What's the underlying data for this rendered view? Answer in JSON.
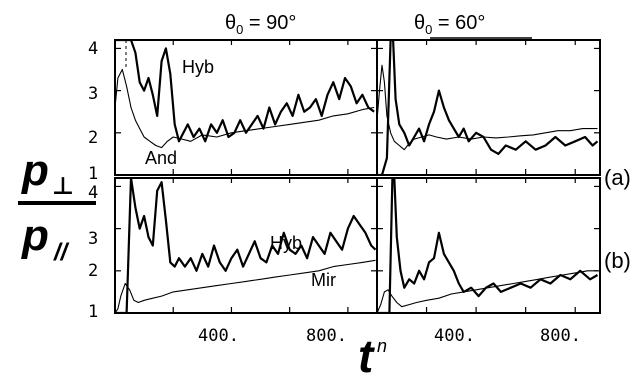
{
  "figure": {
    "y_label_numerator": "p",
    "y_label_numerator_sub": "⊥",
    "y_label_denominator": "p",
    "y_label_denominator_sub": "//",
    "x_label": "t",
    "x_label_sup": "n",
    "col_titles": [
      "θ0 = 90°",
      "θ0 = 60°"
    ],
    "col_title_parts": [
      {
        "theta": "θ",
        "sub": "0",
        "rest": " = 90°"
      },
      {
        "theta": "θ",
        "sub": "0",
        "rest": " = 60°"
      }
    ],
    "row_labels": [
      "(a)",
      "(b)"
    ],
    "y_tick_labels": [
      "1",
      "2",
      "3",
      "4"
    ],
    "x_tick_labels": [
      "400.",
      "800."
    ],
    "annotations": {
      "top_left_hyb": "Hyb",
      "top_left_and": "And",
      "bottom_left_hyb": "Hyb",
      "bottom_left_mir": "Mir"
    }
  },
  "chart_data": [
    {
      "type": "line",
      "panel": "top-left",
      "title": "θ0 = 90°",
      "row_label": "(a)",
      "xlim": [
        0,
        900
      ],
      "ylim": [
        1,
        4.2
      ],
      "series": [
        {
          "name": "Hyb",
          "style": "thick",
          "x": [
            0,
            10,
            25,
            40,
            55,
            70,
            85,
            100,
            115,
            130,
            145,
            160,
            175,
            190,
            205,
            220,
            235,
            250,
            270,
            290,
            310,
            330,
            350,
            370,
            390,
            410,
            430,
            450,
            470,
            490,
            510,
            530,
            550,
            570,
            590,
            610,
            630,
            650,
            670,
            690,
            710,
            730,
            750,
            770,
            790,
            810,
            830,
            850,
            870,
            890
          ],
          "y": [
            4.2,
            4.2,
            4.2,
            4.2,
            4.2,
            3.9,
            3.2,
            3.0,
            3.3,
            2.9,
            2.4,
            3.7,
            4.0,
            3.4,
            2.2,
            1.8,
            2.0,
            2.2,
            1.9,
            2.1,
            1.8,
            2.2,
            2.0,
            2.3,
            1.9,
            2.0,
            2.3,
            2.0,
            2.2,
            2.4,
            2.1,
            2.6,
            2.2,
            2.5,
            2.7,
            2.4,
            2.9,
            2.5,
            2.6,
            2.8,
            2.4,
            2.9,
            3.2,
            2.8,
            3.3,
            3.1,
            2.7,
            2.9,
            2.6,
            2.5
          ]
        },
        {
          "name": "And",
          "style": "thin",
          "x": [
            0,
            10,
            25,
            40,
            55,
            70,
            85,
            100,
            120,
            140,
            160,
            180,
            200,
            230,
            260,
            300,
            350,
            400,
            450,
            500,
            550,
            600,
            650,
            700,
            750,
            800,
            850,
            890
          ],
          "y": [
            2.6,
            3.3,
            3.5,
            3.1,
            2.6,
            2.3,
            2.1,
            1.9,
            1.8,
            1.7,
            1.65,
            1.8,
            1.9,
            1.85,
            1.8,
            1.95,
            1.9,
            2.0,
            2.05,
            2.1,
            2.15,
            2.2,
            2.25,
            2.3,
            2.4,
            2.45,
            2.55,
            2.6
          ]
        }
      ]
    },
    {
      "type": "line",
      "panel": "top-right",
      "title": "θ0 = 60°",
      "row_label": "(a)",
      "xlim": [
        0,
        900
      ],
      "ylim": [
        1,
        4.2
      ],
      "series": [
        {
          "name": "",
          "style": "thick",
          "x": [
            0,
            20,
            40,
            55,
            65,
            75,
            90,
            110,
            130,
            150,
            170,
            190,
            210,
            230,
            250,
            270,
            290,
            310,
            330,
            350,
            370,
            400,
            430,
            460,
            490,
            520,
            560,
            600,
            640,
            680,
            720,
            760,
            800,
            840,
            870,
            890
          ],
          "y": [
            1.0,
            1.0,
            1.4,
            4.2,
            4.2,
            2.8,
            2.2,
            2.0,
            1.7,
            1.9,
            2.1,
            1.8,
            2.2,
            2.5,
            3.0,
            2.6,
            2.3,
            2.1,
            1.9,
            2.1,
            1.8,
            2.0,
            1.9,
            1.6,
            1.5,
            1.7,
            1.6,
            1.8,
            1.6,
            1.7,
            1.9,
            1.7,
            1.8,
            1.9,
            1.7,
            1.8
          ]
        },
        {
          "name": "",
          "style": "thin",
          "x": [
            0,
            10,
            20,
            30,
            40,
            55,
            70,
            90,
            110,
            130,
            150,
            180,
            210,
            240,
            280,
            330,
            380,
            430,
            480,
            530,
            580,
            630,
            680,
            730,
            780,
            830,
            890
          ],
          "y": [
            2.3,
            3.0,
            3.6,
            3.2,
            2.4,
            2.0,
            1.8,
            1.7,
            1.6,
            1.75,
            1.85,
            1.9,
            1.95,
            1.9,
            1.85,
            1.9,
            1.85,
            1.9,
            1.88,
            1.9,
            1.93,
            1.95,
            2.0,
            2.05,
            2.05,
            2.1,
            2.1
          ]
        }
      ]
    },
    {
      "type": "line",
      "panel": "bottom-left",
      "title": "",
      "row_label": "(b)",
      "xlim": [
        0,
        900
      ],
      "ylim": [
        1,
        4.2
      ],
      "series": [
        {
          "name": "Hyb",
          "style": "thick",
          "x": [
            0,
            10,
            40,
            55,
            70,
            85,
            100,
            115,
            130,
            145,
            160,
            175,
            190,
            205,
            220,
            240,
            260,
            280,
            300,
            320,
            340,
            360,
            380,
            400,
            420,
            440,
            460,
            480,
            500,
            520,
            540,
            560,
            580,
            600,
            620,
            640,
            660,
            680,
            700,
            720,
            740,
            760,
            780,
            800,
            820,
            840,
            860,
            880,
            895
          ],
          "y": [
            1.0,
            1.0,
            1.0,
            4.2,
            3.5,
            3.0,
            3.3,
            2.8,
            2.6,
            3.9,
            4.1,
            3.2,
            2.2,
            2.1,
            2.3,
            2.1,
            2.3,
            2.0,
            2.4,
            2.1,
            2.6,
            2.2,
            2.0,
            2.3,
            2.5,
            2.1,
            2.4,
            2.7,
            2.3,
            2.2,
            2.6,
            2.4,
            2.9,
            2.5,
            2.4,
            2.6,
            2.3,
            2.8,
            2.6,
            2.4,
            2.9,
            2.7,
            2.5,
            3.0,
            3.3,
            3.1,
            2.9,
            2.6,
            2.5
          ]
        },
        {
          "name": "Mir",
          "style": "thin",
          "x": [
            0,
            10,
            20,
            35,
            50,
            65,
            80,
            100,
            130,
            160,
            200,
            250,
            300,
            350,
            400,
            450,
            500,
            550,
            600,
            650,
            700,
            750,
            800,
            850,
            895
          ],
          "y": [
            1.0,
            1.1,
            1.4,
            1.7,
            1.55,
            1.3,
            1.25,
            1.3,
            1.35,
            1.4,
            1.5,
            1.55,
            1.6,
            1.65,
            1.7,
            1.75,
            1.8,
            1.85,
            1.9,
            1.95,
            2.0,
            2.1,
            2.15,
            2.2,
            2.25
          ]
        }
      ]
    },
    {
      "type": "line",
      "panel": "bottom-right",
      "title": "",
      "row_label": "(b)",
      "xlim": [
        0,
        900
      ],
      "ylim": [
        1,
        4.2
      ],
      "series": [
        {
          "name": "",
          "style": "thick",
          "x": [
            0,
            20,
            50,
            62,
            70,
            80,
            95,
            110,
            130,
            150,
            170,
            190,
            210,
            230,
            250,
            270,
            290,
            310,
            330,
            350,
            380,
            410,
            440,
            470,
            500,
            540,
            580,
            620,
            660,
            700,
            740,
            780,
            820,
            860,
            890
          ],
          "y": [
            1.0,
            1.0,
            1.0,
            4.2,
            4.2,
            2.8,
            2.0,
            1.6,
            1.8,
            1.7,
            2.0,
            1.8,
            2.2,
            2.3,
            2.9,
            2.4,
            2.2,
            2.0,
            1.7,
            1.5,
            1.6,
            1.4,
            1.6,
            1.7,
            1.5,
            1.6,
            1.7,
            1.6,
            1.8,
            1.7,
            1.9,
            1.8,
            2.0,
            1.8,
            1.9
          ]
        },
        {
          "name": "",
          "style": "thin",
          "x": [
            0,
            15,
            30,
            45,
            60,
            80,
            100,
            130,
            160,
            200,
            250,
            300,
            350,
            400,
            450,
            500,
            550,
            600,
            650,
            700,
            750,
            800,
            850,
            890
          ],
          "y": [
            1.0,
            1.2,
            1.5,
            1.55,
            1.4,
            1.25,
            1.15,
            1.2,
            1.25,
            1.3,
            1.35,
            1.45,
            1.5,
            1.55,
            1.6,
            1.65,
            1.7,
            1.75,
            1.8,
            1.85,
            1.9,
            1.95,
            2.0,
            2.0
          ]
        }
      ]
    }
  ]
}
